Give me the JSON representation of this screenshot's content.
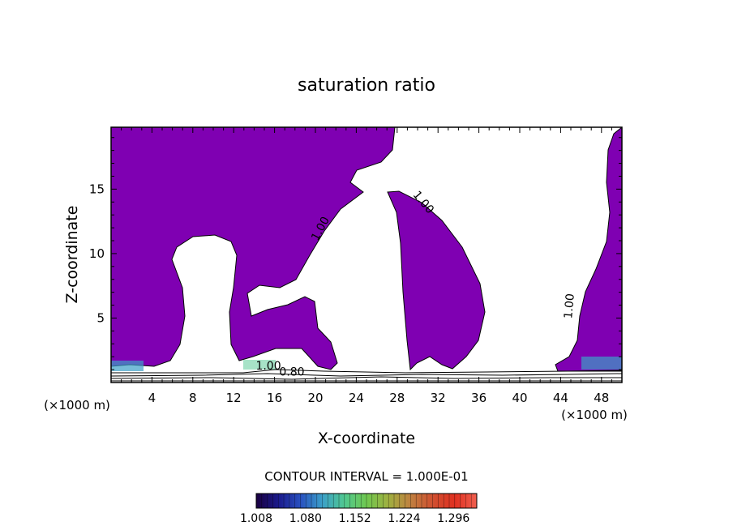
{
  "chart_data": {
    "type": "heatmap",
    "title": "saturation ratio",
    "xlabel": "X-coordinate",
    "ylabel": "Z-coordinate",
    "x_unit_left": "(×1000 m)",
    "x_unit_right": "(×1000 m)",
    "xlim": [
      0,
      50
    ],
    "ylim": [
      0,
      19.8
    ],
    "x_ticks": [
      4,
      8,
      12,
      16,
      20,
      24,
      28,
      32,
      36,
      40,
      44,
      48
    ],
    "y_ticks": [
      5,
      10,
      15
    ],
    "contour_labels": [
      {
        "text": "1.00",
        "x": 20.8,
        "y": 11.8,
        "angle": -62
      },
      {
        "text": "1.00",
        "x": 30.3,
        "y": 13.8,
        "angle": 50
      },
      {
        "text": "1.00",
        "x": 45.2,
        "y": 5.9,
        "angle": -85
      },
      {
        "text": "1.00",
        "x": 15.4,
        "y": 1.0,
        "angle": 0
      },
      {
        "text": "0.80",
        "x": 17.7,
        "y": 0.55,
        "angle": 0
      }
    ],
    "contour_interval_text": "CONTOUR INTERVAL = 1.000E-01",
    "colorbar": {
      "ticks": [
        "1.008",
        "1.080",
        "1.152",
        "1.224",
        "1.296"
      ],
      "min": 1.008,
      "max": 1.33,
      "stops": [
        "#1a0040",
        "#1a1a8c",
        "#2850c0",
        "#3ca0c8",
        "#50c890",
        "#70c850",
        "#a0b040",
        "#c08040",
        "#d05030",
        "#e03020",
        "#f06050"
      ]
    },
    "colors": {
      "saturated": "#7f00b2",
      "background": "#ffffff",
      "axis": "#000000"
    }
  }
}
